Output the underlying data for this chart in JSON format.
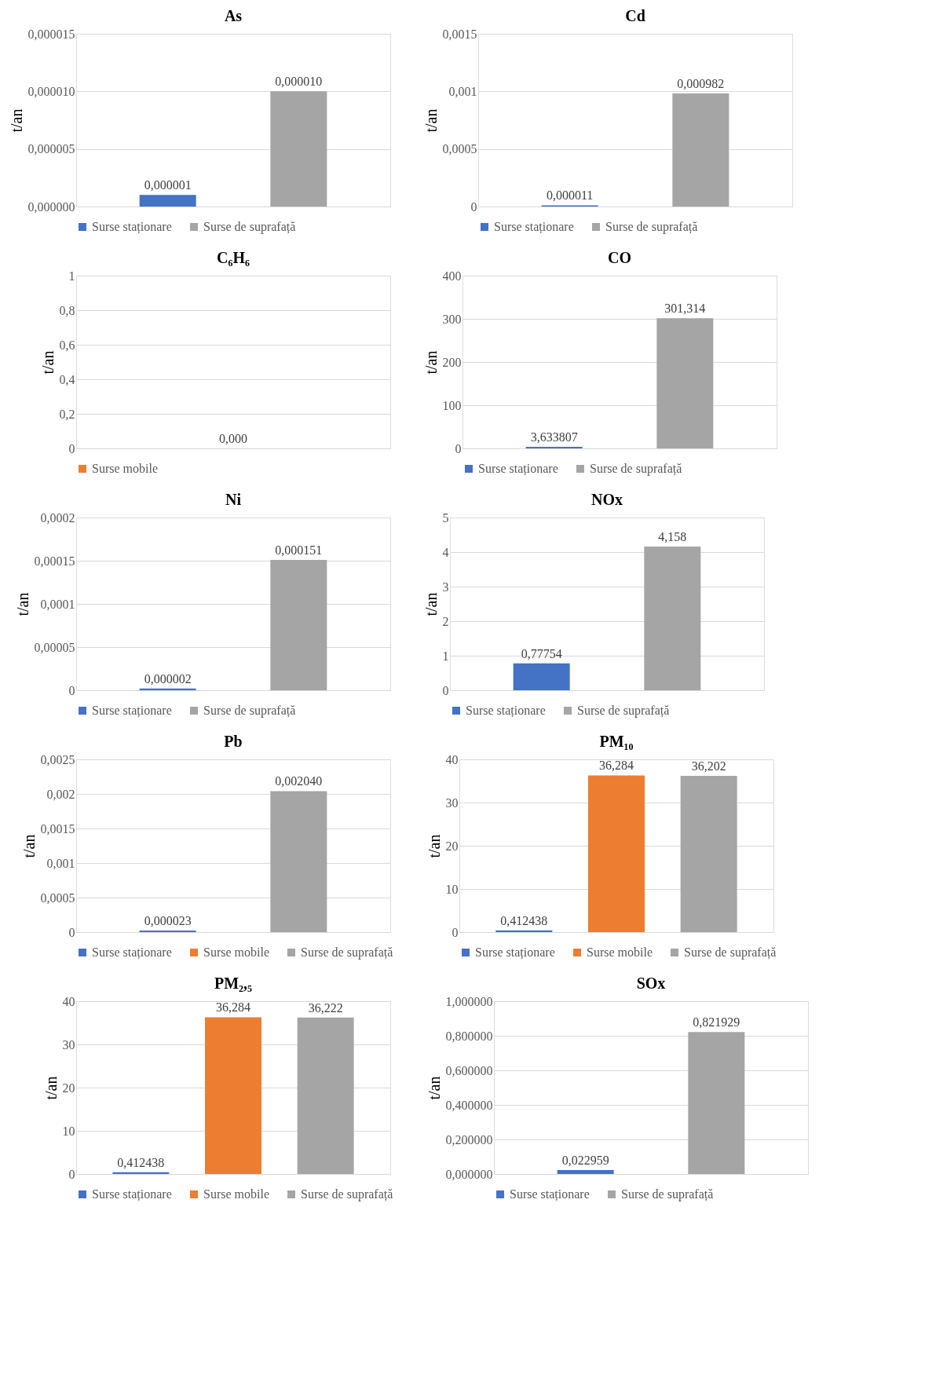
{
  "chart_data": [
    {
      "type": "bar",
      "title": "As",
      "ylabel": "t/an",
      "categories": [
        null,
        null
      ],
      "grid": "y",
      "legend": "bottom",
      "ylim": [
        0,
        1.5e-05
      ],
      "yticks": [
        {
          "value": 0,
          "label": "0,000000"
        },
        {
          "value": 5e-06,
          "label": "0,000005"
        },
        {
          "value": 1e-05,
          "label": "0,000010"
        },
        {
          "value": 1.5e-05,
          "label": "0,000015"
        }
      ],
      "series": [
        {
          "name": "Surse staționare",
          "color": "#4472c4",
          "values": [
            1e-06,
            null
          ],
          "value_labels": [
            "0,000001",
            null
          ]
        },
        {
          "name": "Surse de suprafață",
          "color": "#a5a5a5",
          "values": [
            null,
            1e-05
          ],
          "value_labels": [
            null,
            "0,000010"
          ]
        }
      ]
    },
    {
      "type": "bar",
      "title": "Cd",
      "ylabel": "t/an",
      "categories": [
        null,
        null
      ],
      "grid": "y",
      "legend": "bottom",
      "ylim": [
        0,
        0.0015
      ],
      "yticks": [
        0,
        {
          "value": 0.0005,
          "label": "0,0005"
        },
        {
          "value": 0.001,
          "label": "0,001"
        },
        {
          "value": 0.0015,
          "label": "0,0015"
        }
      ],
      "series": [
        {
          "name": "Surse staționare",
          "color": "#4472c4",
          "values": [
            1.1e-05,
            null
          ],
          "value_labels": [
            "0,000011",
            null
          ]
        },
        {
          "name": "Surse de suprafață",
          "color": "#a5a5a5",
          "values": [
            null,
            0.000982
          ],
          "value_labels": [
            null,
            "0,000982"
          ]
        }
      ]
    },
    {
      "type": "bar",
      "title": "C₆H₆",
      "ylabel": "t/an",
      "categories": [
        null
      ],
      "grid": "y",
      "legend": "bottom",
      "ylim": [
        0,
        1
      ],
      "yticks": [
        0,
        {
          "value": 0.2,
          "label": "0,2"
        },
        {
          "value": 0.4,
          "label": "0,4"
        },
        {
          "value": 0.6,
          "label": "0,6"
        },
        {
          "value": 0.8,
          "label": "0,8"
        },
        1
      ],
      "series": [
        {
          "name": "Surse mobile",
          "color": "#ed7d31",
          "values": [
            0
          ],
          "value_labels": [
            "0,000"
          ]
        }
      ]
    },
    {
      "type": "bar",
      "title": "CO",
      "ylabel": "t/an",
      "categories": [
        null,
        null
      ],
      "grid": "y",
      "legend": "bottom",
      "ylim": [
        0,
        400
      ],
      "yticks": [
        0,
        100,
        200,
        300,
        400
      ],
      "series": [
        {
          "name": "Surse staționare",
          "color": "#4472c4",
          "values": [
            3.633807,
            null
          ],
          "value_labels": [
            "3,633807",
            null
          ]
        },
        {
          "name": "Surse de suprafață",
          "color": "#a5a5a5",
          "values": [
            null,
            301.314
          ],
          "value_labels": [
            null,
            "301,314"
          ]
        }
      ]
    },
    {
      "type": "bar",
      "title": "Ni",
      "ylabel": "t/an",
      "categories": [
        null,
        null
      ],
      "grid": "y",
      "legend": "bottom",
      "ylim": [
        0,
        0.0002
      ],
      "yticks": [
        0,
        {
          "value": 5e-05,
          "label": "0,00005"
        },
        {
          "value": 0.0001,
          "label": "0,0001"
        },
        {
          "value": 0.00015,
          "label": "0,00015"
        },
        {
          "value": 0.0002,
          "label": "0,0002"
        }
      ],
      "series": [
        {
          "name": "Surse staționare",
          "color": "#4472c4",
          "values": [
            2e-06,
            null
          ],
          "value_labels": [
            "0,000002",
            null
          ]
        },
        {
          "name": "Surse de suprafață",
          "color": "#a5a5a5",
          "values": [
            null,
            0.000151
          ],
          "value_labels": [
            null,
            "0,000151"
          ]
        }
      ]
    },
    {
      "type": "bar",
      "title": "NOx",
      "ylabel": "t/an",
      "categories": [
        null,
        null
      ],
      "grid": "y",
      "legend": "bottom",
      "ylim": [
        0,
        5
      ],
      "yticks": [
        0,
        1,
        2,
        3,
        4,
        5
      ],
      "series": [
        {
          "name": "Surse staționare",
          "color": "#4472c4",
          "values": [
            0.77754,
            null
          ],
          "value_labels": [
            "0,77754",
            null
          ]
        },
        {
          "name": "Surse de suprafață",
          "color": "#a5a5a5",
          "values": [
            null,
            4.158
          ],
          "value_labels": [
            null,
            "4,158"
          ]
        }
      ]
    },
    {
      "type": "bar",
      "title": "Pb",
      "ylabel": "t/an",
      "categories": [
        null,
        null
      ],
      "grid": "y",
      "legend": "bottom",
      "ylim": [
        0,
        0.0025
      ],
      "yticks": [
        0,
        {
          "value": 0.0005,
          "label": "0,0005"
        },
        {
          "value": 0.001,
          "label": "0,001"
        },
        {
          "value": 0.0015,
          "label": "0,0015"
        },
        {
          "value": 0.002,
          "label": "0,002"
        },
        {
          "value": 0.0025,
          "label": "0,0025"
        }
      ],
      "series": [
        {
          "name": "Surse staționare",
          "color": "#4472c4",
          "values": [
            2.3e-05,
            null
          ],
          "value_labels": [
            "0,000023",
            null
          ]
        },
        {
          "name": "Surse mobile",
          "color": "#ed7d31",
          "values": [
            null,
            null
          ]
        },
        {
          "name": "Surse de suprafață",
          "color": "#a5a5a5",
          "values": [
            null,
            0.00204
          ],
          "value_labels": [
            null,
            "0,002040"
          ]
        }
      ]
    },
    {
      "type": "bar",
      "title": "PM₁₀",
      "ylabel": "t/an",
      "categories": [
        null,
        null,
        null
      ],
      "grid": "y",
      "legend": "bottom",
      "ylim": [
        0,
        40
      ],
      "yticks": [
        0,
        10,
        20,
        30,
        40
      ],
      "series": [
        {
          "name": "Surse staționare",
          "color": "#4472c4",
          "values": [
            0.412438,
            null,
            null
          ],
          "value_labels": [
            "0,412438",
            null,
            null
          ]
        },
        {
          "name": "Surse mobile",
          "color": "#ed7d31",
          "values": [
            null,
            36.284,
            null
          ],
          "value_labels": [
            null,
            "36,284",
            null
          ]
        },
        {
          "name": "Surse de suprafață",
          "color": "#a5a5a5",
          "values": [
            null,
            null,
            36.202
          ],
          "value_labels": [
            null,
            null,
            "36,202"
          ]
        }
      ]
    },
    {
      "type": "bar",
      "title": "PM₂,₅",
      "ylabel": "t/an",
      "categories": [
        null,
        null,
        null
      ],
      "grid": "y",
      "legend": "bottom",
      "ylim": [
        0,
        40
      ],
      "yticks": [
        0,
        10,
        20,
        30,
        40
      ],
      "series": [
        {
          "name": "Surse staționare",
          "color": "#4472c4",
          "values": [
            0.412438,
            null,
            null
          ],
          "value_labels": [
            "0,412438",
            null,
            null
          ]
        },
        {
          "name": "Surse mobile",
          "color": "#ed7d31",
          "values": [
            null,
            36.284,
            null
          ],
          "value_labels": [
            null,
            "36,284",
            null
          ]
        },
        {
          "name": "Surse de suprafață",
          "color": "#a5a5a5",
          "values": [
            null,
            null,
            36.222
          ],
          "value_labels": [
            null,
            null,
            "36,222"
          ]
        }
      ]
    },
    {
      "type": "bar",
      "title": "SOx",
      "ylabel": "t/an",
      "categories": [
        null,
        null
      ],
      "grid": "y",
      "legend": "bottom",
      "ylim": [
        0,
        1
      ],
      "yticks": [
        {
          "value": 0,
          "label": "0,000000"
        },
        {
          "value": 0.2,
          "label": "0,200000"
        },
        {
          "value": 0.4,
          "label": "0,400000"
        },
        {
          "value": 0.6,
          "label": "0,600000"
        },
        {
          "value": 0.8,
          "label": "0,800000"
        },
        {
          "value": 1,
          "label": "1,000000"
        }
      ],
      "series": [
        {
          "name": "Surse staționare",
          "color": "#4472c4",
          "values": [
            0.022959,
            null
          ],
          "value_labels": [
            "0,022959",
            null
          ]
        },
        {
          "name": "Surse de suprafață",
          "color": "#a5a5a5",
          "values": [
            null,
            0.821929
          ],
          "value_labels": [
            null,
            "0,821929"
          ]
        }
      ]
    }
  ]
}
